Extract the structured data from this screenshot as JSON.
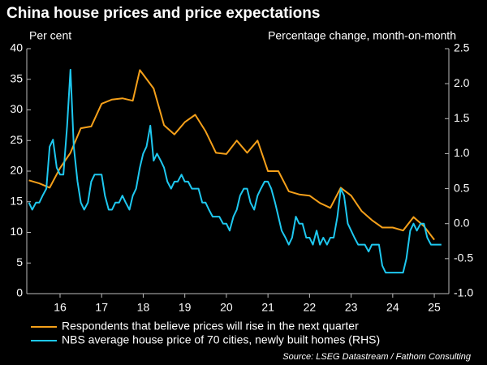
{
  "chart_data": {
    "type": "line",
    "title": "China house prices and price expectations",
    "ylabel": "Per cent",
    "y2label": "Percentage change, month-on-month",
    "source": "Source: LSEG Datastream / Fathom Consulting",
    "xlim": [
      15.2,
      25.35
    ],
    "xticks": [
      16,
      17,
      18,
      19,
      20,
      21,
      22,
      23,
      24,
      25
    ],
    "ylim": [
      0,
      40
    ],
    "yticks": [
      0,
      5,
      10,
      15,
      20,
      25,
      30,
      35,
      40
    ],
    "y2lim": [
      -1.0,
      2.5
    ],
    "y2ticks": [
      {
        "value": -1.0,
        "label": "-1.0"
      },
      -0.5,
      {
        "value": 0.0,
        "label": "0.0"
      },
      0.5,
      {
        "value": 1.0,
        "label": "1.0"
      },
      1.5,
      {
        "value": 2.0,
        "label": "2.0"
      },
      2.5
    ],
    "series": [
      {
        "name": "Respondents that believe prices will rise in the next quarter",
        "color": "#f5a01a",
        "x": [
          15.25,
          15.5,
          15.75,
          16,
          16.25,
          16.5,
          16.75,
          17,
          17.25,
          17.5,
          17.75,
          17.92,
          18.25,
          18.5,
          18.75,
          19,
          19.25,
          19.5,
          19.75,
          20,
          20.25,
          20.5,
          20.75,
          21,
          21.25,
          21.5,
          21.75,
          22,
          22.25,
          22.5,
          22.75,
          23,
          23.25,
          23.5,
          23.75,
          24,
          24.25,
          24.5,
          24.75,
          25
        ],
        "values": [
          18.5,
          18,
          17.3,
          20.5,
          23,
          27,
          27.3,
          31,
          31.7,
          31.9,
          31.5,
          36.5,
          33.5,
          27.5,
          26,
          28,
          29.2,
          26.5,
          23,
          22.8,
          25,
          23,
          25,
          20,
          20,
          16.7,
          16.2,
          16,
          14.8,
          14,
          17.3,
          16,
          13.5,
          12,
          10.8,
          10.8,
          10.3,
          12.5,
          11,
          8.8
        ]
      },
      {
        "name": "NBS average house price of 70 cities, newly built homes (RHS)",
        "color": "#1ec8f0",
        "axis": "y2",
        "x": [
          15.25,
          15.33,
          15.42,
          15.5,
          15.58,
          15.67,
          15.75,
          15.83,
          15.92,
          16,
          16.08,
          16.17,
          16.25,
          16.33,
          16.42,
          16.5,
          16.58,
          16.67,
          16.75,
          16.83,
          16.92,
          17,
          17.08,
          17.17,
          17.25,
          17.33,
          17.42,
          17.5,
          17.58,
          17.67,
          17.75,
          17.83,
          17.92,
          18,
          18.08,
          18.17,
          18.25,
          18.33,
          18.42,
          18.5,
          18.58,
          18.67,
          18.75,
          18.83,
          18.92,
          19,
          19.08,
          19.17,
          19.25,
          19.33,
          19.42,
          19.5,
          19.58,
          19.67,
          19.75,
          19.83,
          19.92,
          20,
          20.08,
          20.17,
          20.25,
          20.33,
          20.42,
          20.5,
          20.58,
          20.67,
          20.75,
          20.83,
          20.92,
          21,
          21.08,
          21.17,
          21.25,
          21.33,
          21.42,
          21.5,
          21.58,
          21.67,
          21.75,
          21.83,
          21.92,
          22,
          22.08,
          22.17,
          22.25,
          22.33,
          22.42,
          22.5,
          22.58,
          22.67,
          22.75,
          22.83,
          22.92,
          23,
          23.08,
          23.17,
          23.25,
          23.33,
          23.42,
          23.5,
          23.58,
          23.67,
          23.75,
          23.83,
          23.92,
          24,
          24.08,
          24.17,
          24.25,
          24.33,
          24.42,
          24.5,
          24.58,
          24.67,
          24.75,
          24.83,
          24.92,
          25,
          25.08,
          25.17
        ],
        "values": [
          0.3,
          0.2,
          0.3,
          0.3,
          0.4,
          0.5,
          1.1,
          1.2,
          0.8,
          0.7,
          0.7,
          1.4,
          2.2,
          1.1,
          0.6,
          0.3,
          0.2,
          0.3,
          0.6,
          0.7,
          0.7,
          0.7,
          0.4,
          0.2,
          0.2,
          0.3,
          0.3,
          0.4,
          0.3,
          0.2,
          0.4,
          0.5,
          0.8,
          1.0,
          1.1,
          1.4,
          0.9,
          1.0,
          0.9,
          0.8,
          0.6,
          0.5,
          0.6,
          0.6,
          0.7,
          0.6,
          0.6,
          0.5,
          0.5,
          0.5,
          0.3,
          0.3,
          0.2,
          0.1,
          0.1,
          0.1,
          0.0,
          0.0,
          -0.1,
          0.1,
          0.2,
          0.4,
          0.5,
          0.5,
          0.3,
          0.2,
          0.4,
          0.5,
          0.6,
          0.6,
          0.5,
          0.3,
          0.1,
          -0.1,
          -0.2,
          -0.3,
          -0.2,
          0.1,
          0.0,
          0.0,
          -0.2,
          -0.2,
          -0.3,
          -0.1,
          -0.3,
          -0.2,
          -0.3,
          -0.2,
          -0.2,
          0.1,
          0.5,
          0.4,
          0.0,
          -0.1,
          -0.2,
          -0.3,
          -0.3,
          -0.3,
          -0.4,
          -0.3,
          -0.3,
          -0.3,
          -0.6,
          -0.7,
          -0.7,
          -0.7,
          -0.7,
          -0.7,
          -0.7,
          -0.5,
          -0.1,
          0.0,
          -0.1,
          0.0,
          0.0,
          -0.2,
          -0.3,
          -0.3,
          -0.3,
          -0.3
        ]
      }
    ]
  }
}
